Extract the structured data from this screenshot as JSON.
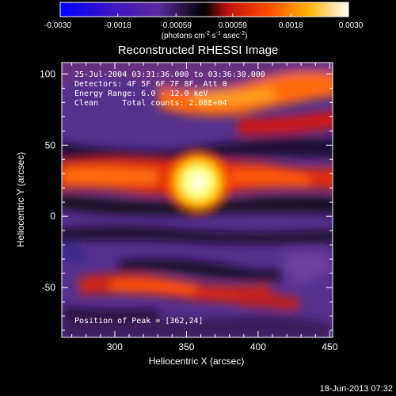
{
  "colorbar": {
    "ticks": [
      "-0.0030",
      "-0.0018",
      "-0.00059",
      "0.00059",
      "0.0018",
      "0.0030"
    ],
    "ticks_values": [
      -0.003,
      -0.0018,
      -0.00059,
      0.00059,
      0.0018,
      0.003
    ],
    "range": [
      -0.003,
      0.003
    ],
    "units_main": "(photons cm",
    "units_exp1": "-2",
    "units_mid": " s",
    "units_exp2": "-1",
    "units_mid2": " asec",
    "units_exp3": "-2",
    "units_close": ")"
  },
  "chart_data": {
    "type": "heatmap",
    "title": "Reconstructed RHESSI Image",
    "xlabel": "Heliocentric X (arcsec)",
    "ylabel": "Heliocentric Y (arcsec)",
    "xlim": [
      263,
      452
    ],
    "ylim": [
      -85,
      108
    ],
    "xticks": [
      300,
      350,
      400,
      450
    ],
    "yticks": [
      -50,
      0,
      50,
      100
    ],
    "xtick_labels": [
      "300",
      "350",
      "400",
      "450"
    ],
    "ytick_labels": [
      "-50",
      "0",
      "50",
      "100"
    ],
    "colormap": "RHESSI color scale (blue-purple-red-orange-yellow-white)",
    "peak_value": 0.003,
    "annotations": [
      "25-Jul-2004 03:31:36.000 to 03:36:30.000",
      "Detectors: 4F 5F 6F 7F 8F, Att 0",
      "Energy Range: 6.0 - 12.0 keV",
      "Clean     Total counts: 2.08E+04"
    ],
    "peak_label": "Position of Peak = [362,24]",
    "peak_position": [
      362,
      24
    ]
  },
  "footer": {
    "date": "18-Jun-2013 07:32"
  }
}
